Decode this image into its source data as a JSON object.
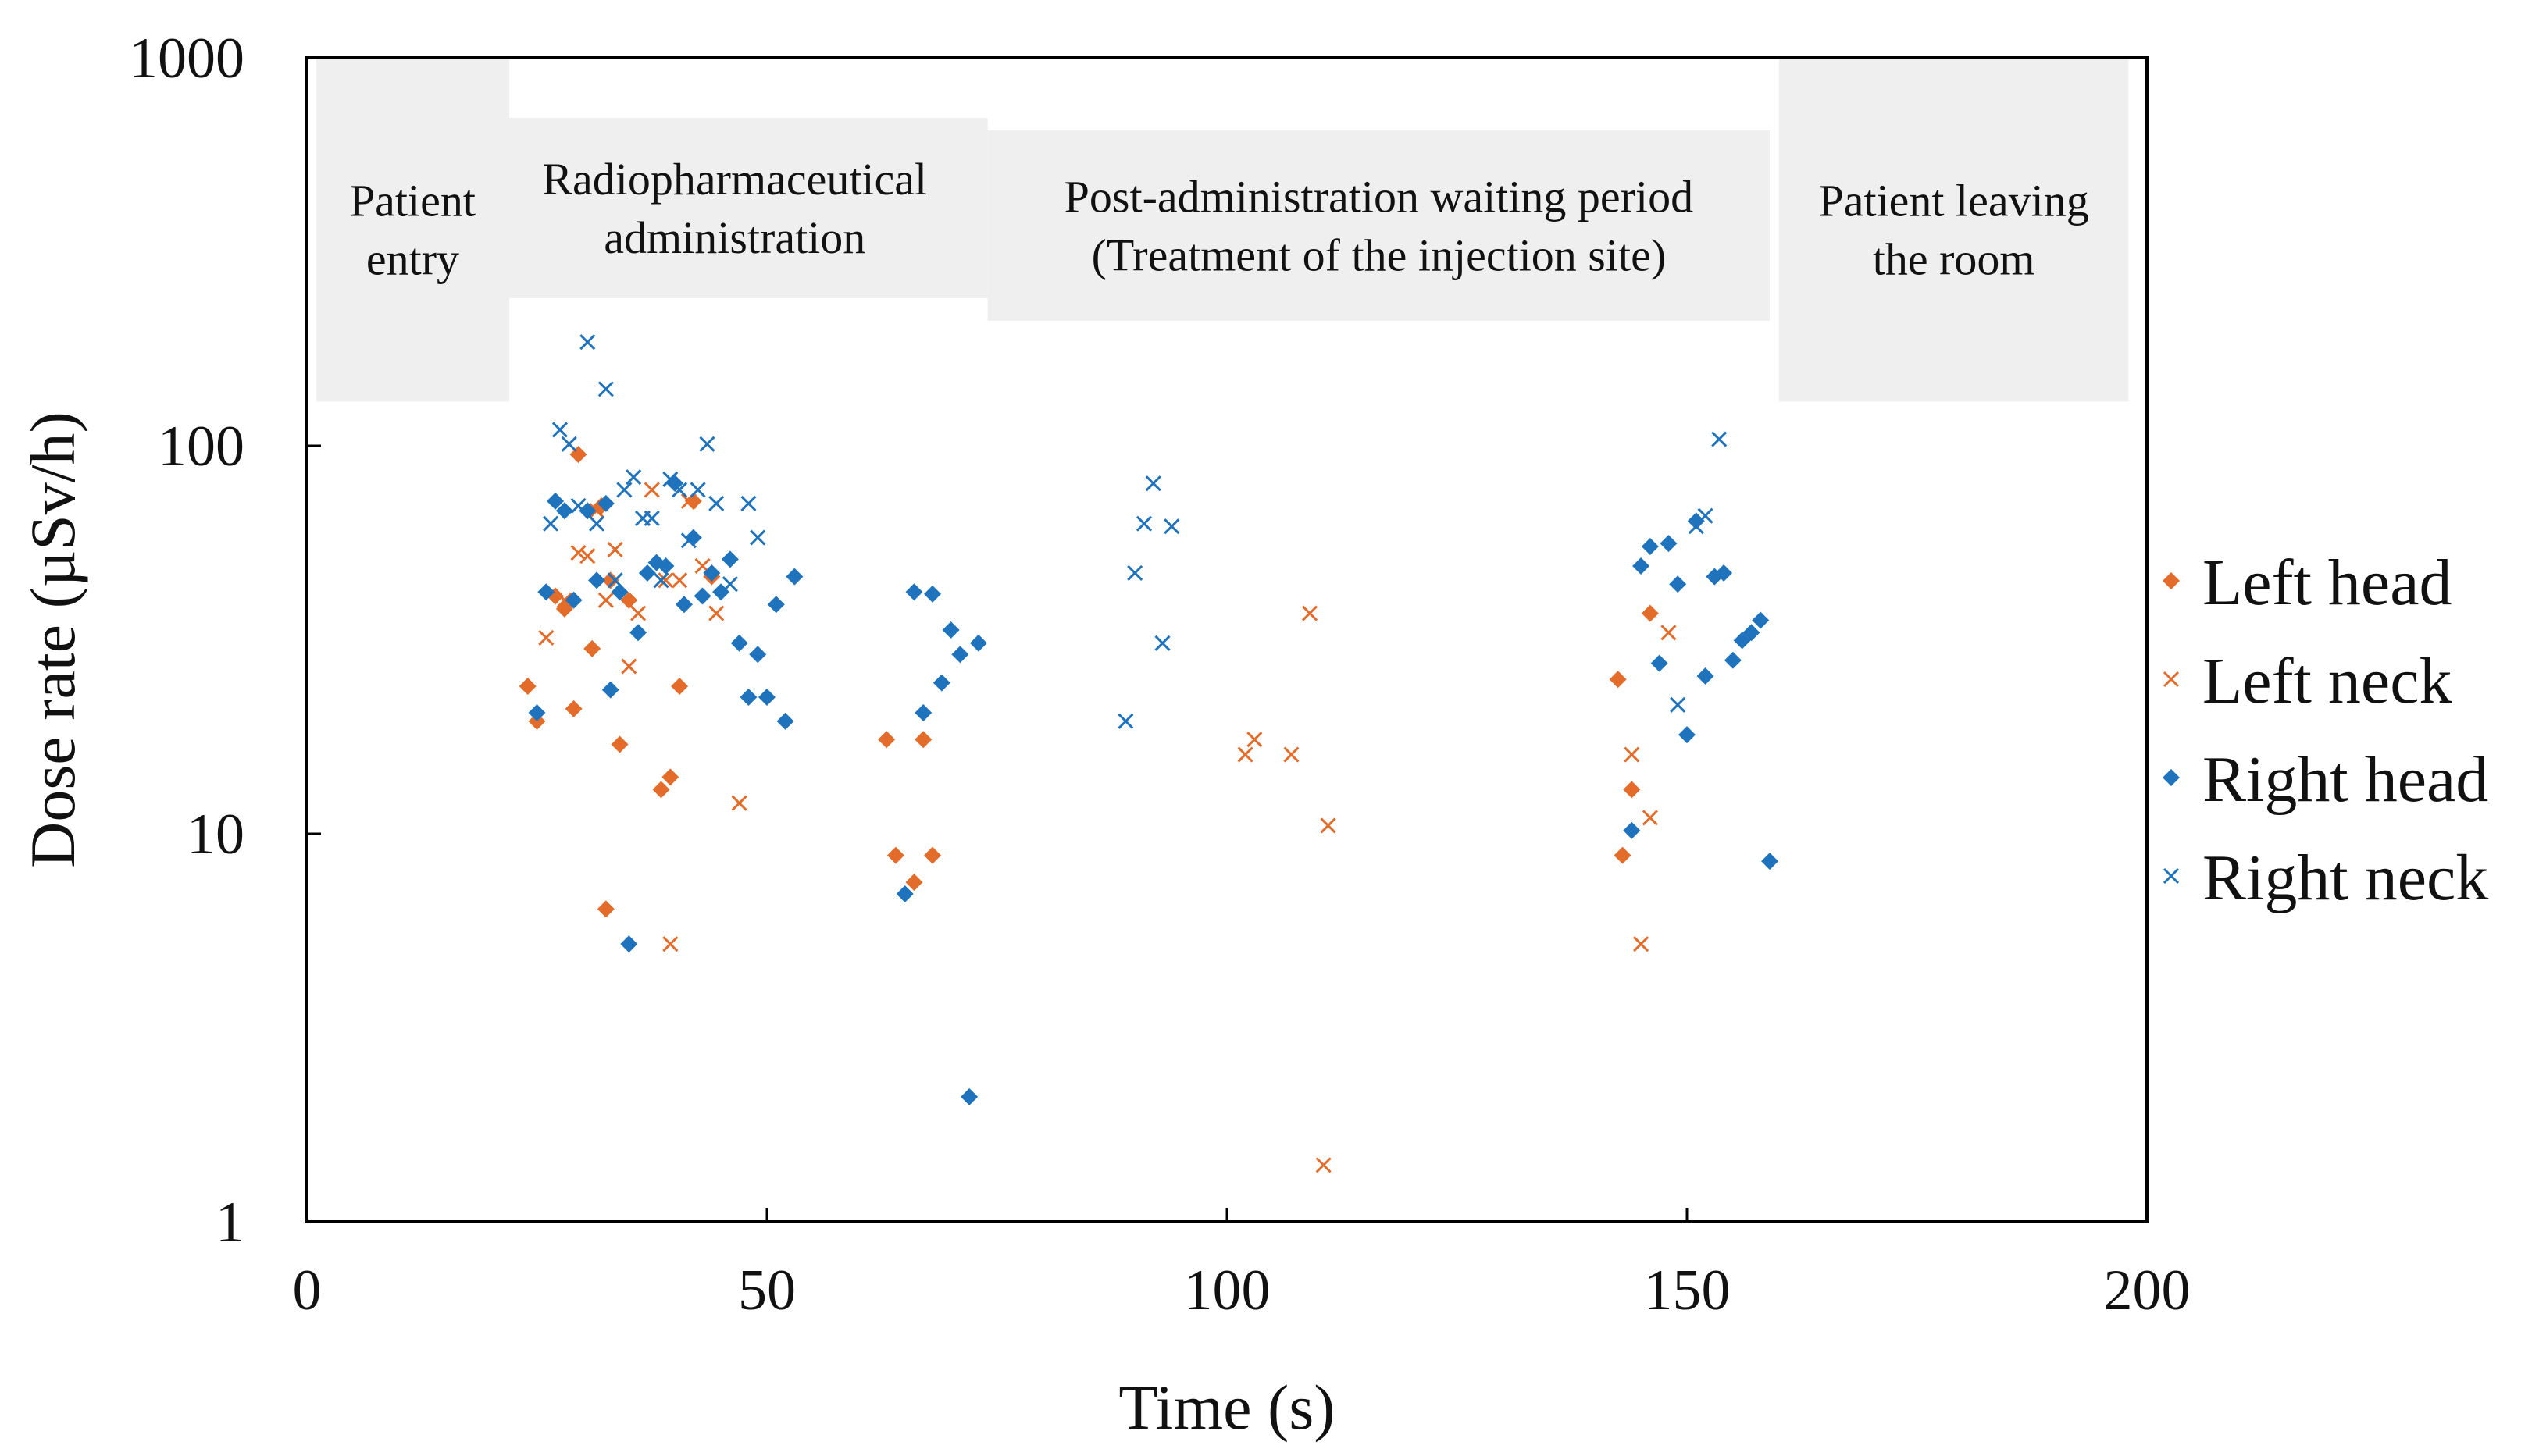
{
  "chart_data": {
    "type": "scatter",
    "xlabel": "Time (s)",
    "ylabel": "Dose rate (µSv/h)",
    "xlim": [
      0,
      200
    ],
    "ylim": [
      1,
      1000
    ],
    "yscale": "log",
    "xticks": [
      0,
      50,
      100,
      150,
      200
    ],
    "xtick_labels": [
      "0",
      "50",
      "100",
      "150",
      "200"
    ],
    "yticks": [
      1,
      10,
      100,
      1000
    ],
    "ytick_labels": [
      "1",
      "10",
      "100",
      "1000"
    ],
    "grid": false,
    "legend_position": "right",
    "phase_annotations": [
      {
        "lines": [
          "Patient",
          "entry"
        ],
        "x_range": [
          1,
          22
        ],
        "y_range": [
          130,
          1000
        ]
      },
      {
        "lines": [
          "Radiopharmaceutical",
          "administration"
        ],
        "x_range": [
          19,
          74
        ],
        "y_range": [
          240,
          700
        ]
      },
      {
        "lines": [
          "Post-administration waiting period",
          "(Treatment of the injection site)"
        ],
        "x_range": [
          74,
          159
        ],
        "y_range": [
          210,
          650
        ]
      },
      {
        "lines": [
          "Patient leaving",
          "the room"
        ],
        "x_range": [
          160,
          198
        ],
        "y_range": [
          130,
          1000
        ]
      }
    ],
    "series": [
      {
        "name": "Left head",
        "color": "#E36C2A",
        "marker": "diamond",
        "points": [
          [
            24,
            24
          ],
          [
            25,
            19.5
          ],
          [
            27,
            41
          ],
          [
            28,
            38
          ],
          [
            29,
            21
          ],
          [
            29.5,
            95
          ],
          [
            31,
            30
          ],
          [
            32,
            70
          ],
          [
            32.5,
            6.4
          ],
          [
            33,
            45
          ],
          [
            34,
            17
          ],
          [
            35,
            40
          ],
          [
            38.5,
            13
          ],
          [
            39.5,
            14
          ],
          [
            40.5,
            24
          ],
          [
            42,
            72
          ],
          [
            44,
            46
          ],
          [
            63,
            17.5
          ],
          [
            64,
            8.8
          ],
          [
            66,
            7.5
          ],
          [
            67,
            17.5
          ],
          [
            68,
            8.8
          ],
          [
            142.5,
            25
          ],
          [
            143,
            8.8
          ],
          [
            144,
            13
          ],
          [
            146,
            37
          ]
        ]
      },
      {
        "name": "Left neck",
        "color": "#E36C2A",
        "marker": "x",
        "points": [
          [
            26,
            32
          ],
          [
            28,
            40
          ],
          [
            29.5,
            53
          ],
          [
            30.5,
            52
          ],
          [
            31.5,
            68
          ],
          [
            32.5,
            40
          ],
          [
            33.5,
            54
          ],
          [
            35,
            27
          ],
          [
            36,
            37
          ],
          [
            37.5,
            77
          ],
          [
            39,
            45
          ],
          [
            39.5,
            5.2
          ],
          [
            40.5,
            45
          ],
          [
            41.5,
            72
          ],
          [
            43,
            49
          ],
          [
            44.5,
            37
          ],
          [
            47,
            12
          ],
          [
            102,
            16
          ],
          [
            103,
            17.5
          ],
          [
            107,
            16
          ],
          [
            109,
            37
          ],
          [
            110.5,
            1.4
          ],
          [
            111,
            10.5
          ],
          [
            144,
            16
          ],
          [
            145,
            5.2
          ],
          [
            146,
            11
          ],
          [
            148,
            33
          ]
        ]
      },
      {
        "name": "Right head",
        "color": "#1F73BD",
        "marker": "diamond",
        "points": [
          [
            25,
            20.5
          ],
          [
            26,
            42
          ],
          [
            27,
            72
          ],
          [
            28,
            68
          ],
          [
            29,
            40
          ],
          [
            30.5,
            68
          ],
          [
            31.5,
            45
          ],
          [
            32.5,
            71
          ],
          [
            33,
            23.5
          ],
          [
            34,
            42
          ],
          [
            35,
            5.2
          ],
          [
            36,
            33
          ],
          [
            37,
            47
          ],
          [
            38,
            50
          ],
          [
            39,
            49
          ],
          [
            40,
            80
          ],
          [
            41,
            39
          ],
          [
            42,
            58
          ],
          [
            43,
            41
          ],
          [
            44,
            47
          ],
          [
            45,
            42
          ],
          [
            46,
            51
          ],
          [
            47,
            31
          ],
          [
            48,
            22.5
          ],
          [
            49,
            29
          ],
          [
            50,
            22.5
          ],
          [
            51,
            39
          ],
          [
            52,
            19.5
          ],
          [
            53,
            46
          ],
          [
            65,
            7
          ],
          [
            66,
            42
          ],
          [
            67,
            20.5
          ],
          [
            68,
            41.5
          ],
          [
            69,
            24.5
          ],
          [
            70,
            33.5
          ],
          [
            71,
            29
          ],
          [
            72,
            2.1
          ],
          [
            73,
            31
          ],
          [
            144,
            10.2
          ],
          [
            145,
            49
          ],
          [
            146,
            55
          ],
          [
            147,
            27.5
          ],
          [
            148,
            56
          ],
          [
            149,
            44
          ],
          [
            150,
            18
          ],
          [
            151,
            64
          ],
          [
            152,
            25.5
          ],
          [
            153,
            46
          ],
          [
            154,
            47
          ],
          [
            155,
            28
          ],
          [
            156,
            31.5
          ],
          [
            157,
            33
          ],
          [
            158,
            35.5
          ],
          [
            159,
            8.5
          ]
        ]
      },
      {
        "name": "Right neck",
        "color": "#1F73BD",
        "marker": "x",
        "points": [
          [
            26.5,
            63
          ],
          [
            27.5,
            110
          ],
          [
            28.5,
            101
          ],
          [
            29.5,
            70
          ],
          [
            30.5,
            185
          ],
          [
            31.5,
            63
          ],
          [
            32.5,
            140
          ],
          [
            33.5,
            45
          ],
          [
            34.5,
            77
          ],
          [
            35.5,
            83
          ],
          [
            36.5,
            65
          ],
          [
            37.5,
            65
          ],
          [
            38.5,
            45
          ],
          [
            39.5,
            82
          ],
          [
            40.5,
            77
          ],
          [
            41.5,
            57
          ],
          [
            42.5,
            77
          ],
          [
            43.5,
            101
          ],
          [
            44.5,
            71
          ],
          [
            46,
            44
          ],
          [
            48,
            71
          ],
          [
            49,
            58
          ],
          [
            89,
            19.5
          ],
          [
            90,
            47
          ],
          [
            91,
            63
          ],
          [
            92,
            80
          ],
          [
            93,
            31
          ],
          [
            94,
            62
          ],
          [
            149,
            21.5
          ],
          [
            151,
            62
          ],
          [
            152,
            66
          ],
          [
            153.5,
            104
          ]
        ]
      }
    ]
  }
}
